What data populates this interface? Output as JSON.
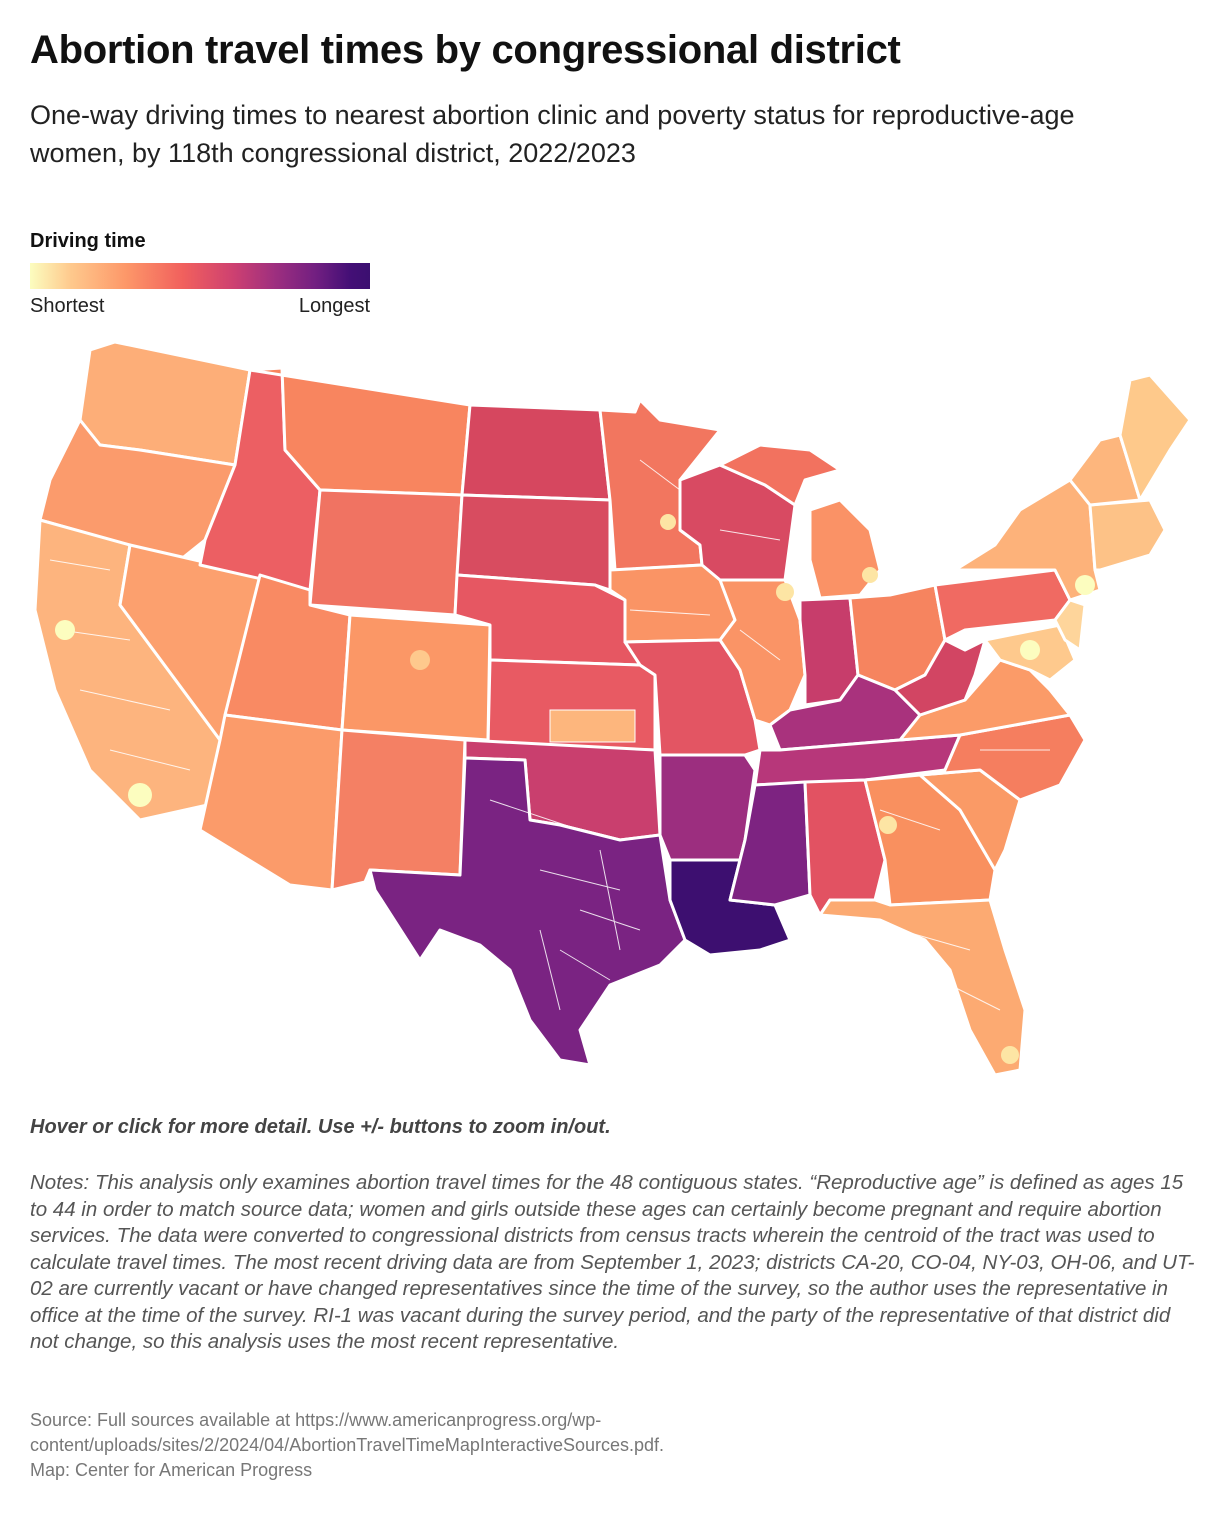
{
  "title": "Abortion travel times by congressional district",
  "subtitle": "One-way driving times to nearest abortion clinic and poverty status for reproductive-age women, by 118th congressional district, 2022/2023",
  "legend": {
    "title": "Driving time",
    "low_label": "Shortest",
    "high_label": "Longest"
  },
  "hint": "Hover or click for more detail. Use +/- buttons to zoom in/out.",
  "notes": "Notes: This analysis only examines abortion travel times for the 48 contiguous states. “Reproductive age” is defined as ages 15 to 44 in order to match source data; women and girls outside these ages can certainly become pregnant and require abortion services. The data were converted to congressional districts from census tracts wherein the centroid of the tract was used to calculate travel times. The most recent driving data are from September 1, 2023; districts CA-20, CO-04, NY-03, OH-06, and UT-02 are currently vacant or have changed representatives since the time of the survey, so the author uses the representative in office at the time of the survey. RI-1 was vacant during the survey period, and the party of the representative of that district did not change, so this analysis uses the most recent representative.",
  "source": "Source: Full sources available at https://www.americanprogress.org/wp-content/uploads/sites/2/2024/04/AbortionTravelTimeMapInteractiveSources.pdf.",
  "credit": "Map: Center for American Progress",
  "colors": {
    "shortest": "#fcfdbf",
    "short": "#fec98d",
    "medium_short": "#fd9869",
    "medium": "#f1605d",
    "medium_long": "#cd4071",
    "long": "#9e2f7f",
    "longer": "#721f81",
    "longest": "#3b0f70"
  }
}
